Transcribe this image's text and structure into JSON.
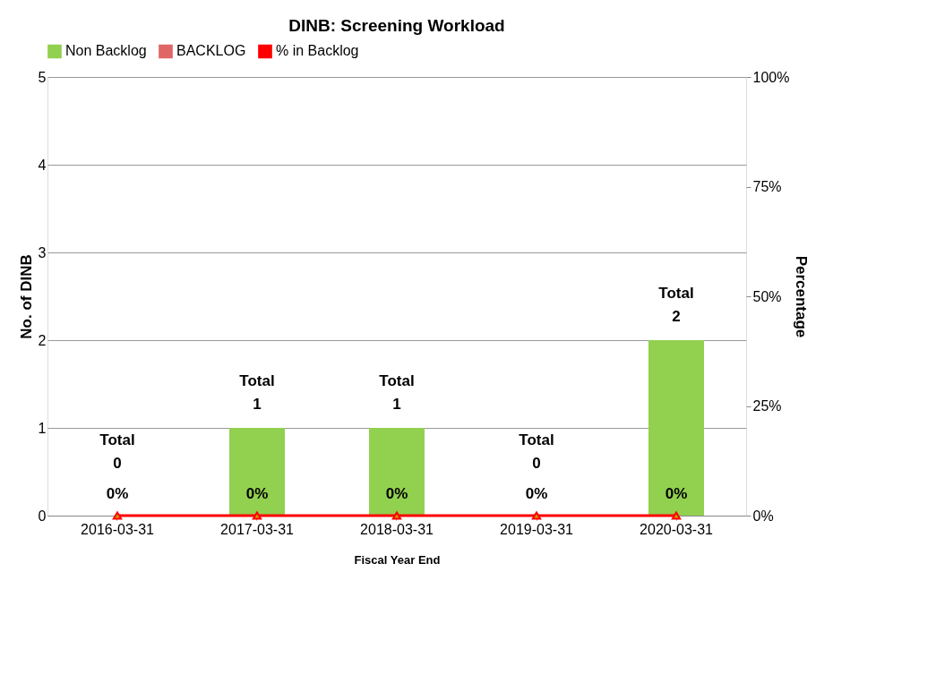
{
  "chart_data": {
    "type": "bar",
    "title": "DINB: Screening Workload",
    "xlabel": "Fiscal Year End",
    "ylabel": "No. of DINB",
    "y2label": "Percentage",
    "categories": [
      "2016-03-31",
      "2017-03-31",
      "2018-03-31",
      "2019-03-31",
      "2020-03-31"
    ],
    "stacked": true,
    "series": [
      {
        "name": "Non Backlog",
        "color": "#92d050",
        "values": [
          0,
          1,
          1,
          0,
          2
        ]
      },
      {
        "name": "BACKLOG",
        "color": "#e06666",
        "values": [
          0,
          0,
          0,
          0,
          0
        ]
      },
      {
        "name": "% in Backlog",
        "color": "#ff0000",
        "type": "line",
        "axis": "y2",
        "marker": "triangle",
        "values": [
          0,
          0,
          0,
          0,
          0
        ],
        "value_labels": [
          "0%",
          "0%",
          "0%",
          "0%",
          "0%"
        ]
      }
    ],
    "totals": [
      "Total 0",
      "Total 1",
      "Total 1",
      "Total 0",
      "Total 2"
    ],
    "ylim": [
      0,
      5
    ],
    "yticks": [
      0,
      1,
      2,
      3,
      4,
      5
    ],
    "y2lim": [
      0,
      100
    ],
    "y2ticks": [
      {
        "value": 0,
        "label": "0%"
      },
      {
        "value": 25,
        "label": "25%"
      },
      {
        "value": 50,
        "label": "50%"
      },
      {
        "value": 75,
        "label": "75%"
      },
      {
        "value": 100,
        "label": "100%"
      }
    ],
    "grid": "y",
    "legend": "top"
  }
}
